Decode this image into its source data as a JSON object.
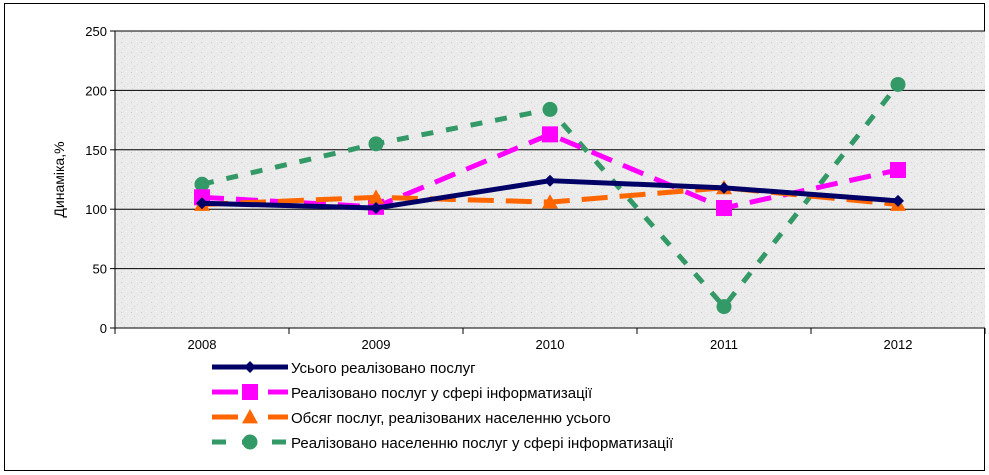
{
  "chart_data": {
    "type": "line",
    "title": "",
    "xlabel": "",
    "ylabel": "Динаміка,%",
    "ylim": [
      0,
      250
    ],
    "yticks": [
      "0",
      "50",
      "100",
      "150",
      "200",
      "250"
    ],
    "categories": [
      "2008",
      "2009",
      "2010",
      "2011",
      "2012"
    ],
    "grid": true,
    "legend_position": "bottom",
    "series": [
      {
        "name": "Усього реалізовано послуг",
        "values": [
          105,
          101,
          124,
          118,
          107
        ],
        "color": "#000066",
        "marker": "diamond",
        "dash": "solid"
      },
      {
        "name": "Реалізовано послуг у сфері інформатизації",
        "values": [
          110,
          102,
          163,
          101,
          133
        ],
        "color": "#ff00ff",
        "marker": "square",
        "dash": "dashed"
      },
      {
        "name": "Обсяг послуг, реалізованих населенню усього",
        "values": [
          104,
          110,
          106,
          118,
          104
        ],
        "color": "#ff6600",
        "marker": "triangle",
        "dash": "dashed"
      },
      {
        "name": "Реалізовано населенню послуг у сфері інформатизації",
        "values": [
          121,
          155,
          184,
          18,
          205
        ],
        "color": "#339966",
        "marker": "circle",
        "dash": "dashed"
      }
    ]
  }
}
